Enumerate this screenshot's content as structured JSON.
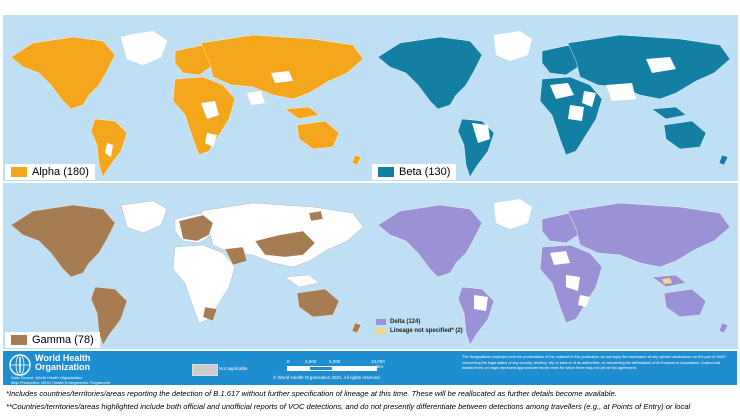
{
  "panels": {
    "alpha": {
      "label": "Alpha (180)",
      "color": "#f4a61d"
    },
    "beta": {
      "label": "Beta (130)",
      "color": "#137fa3"
    },
    "gamma": {
      "label": "Gamma (78)",
      "color": "#a67c52"
    },
    "delta": {
      "label": "Delta (124)",
      "color": "#9b92d6"
    }
  },
  "lineage_not_specified": {
    "label": "Lineage not specified* (2)",
    "color": "#f0d98a"
  },
  "colors": {
    "ocean": "#bfe0f4",
    "not_detected": "#ffffff",
    "not_applicable": "#cccccc",
    "footer": "#1f8ed1"
  },
  "footer": {
    "org_line1": "World Health",
    "org_line2": "Organization",
    "data_source": "Data Source: World Health Organization",
    "map_production": "Map Production: WHO Health Emergencies Programme",
    "not_applicable": "Not applicable",
    "scale_ticks": [
      "0",
      "2,500",
      "5,000",
      "10,000"
    ],
    "scale_unit": "km",
    "copyright": "© World Health Organization 2021, All rights reserved",
    "disclaimer": "The designations employed and the presentation of the material in this publication do not imply the expression of any opinion whatsoever on the part of WHO concerning the legal status of any country, territory, city or area or of its authorities, or concerning the delimitation of its frontiers or boundaries. Dotted and dashed lines on maps represent approximate border lines for which there may not yet be full agreement."
  },
  "notes": {
    "note1": "*Includes countries/territories/areas reporting the detection of B.1.617 without further specification of lineage at this time. These will be reallocated as further details become available.",
    "note2": "**Countries/territories/areas highlighted include both official and unofficial reports of VOC detections, and do not presently differentiate between detections among travellers (e.g., at Points of Entry) or local"
  }
}
